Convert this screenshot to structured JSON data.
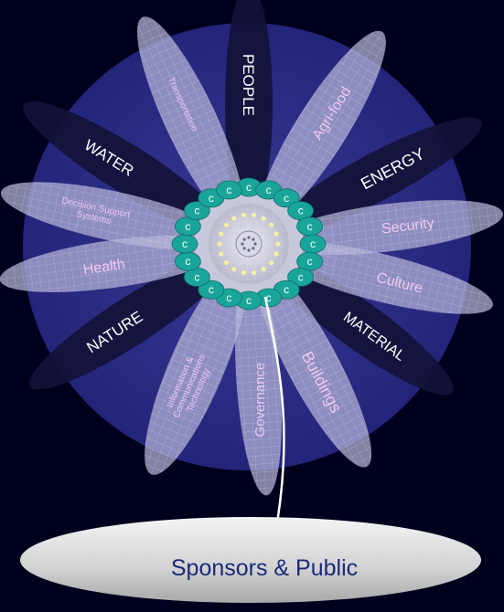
{
  "petals": [
    {
      "id": "people",
      "label": "PEOPLE",
      "tone": "dark"
    },
    {
      "id": "agri-food",
      "label": "Agri-food",
      "tone": "light"
    },
    {
      "id": "energy",
      "label": "ENERGY",
      "tone": "dark"
    },
    {
      "id": "security",
      "label": "Security",
      "tone": "light"
    },
    {
      "id": "culture",
      "label": "Culture",
      "tone": "light"
    },
    {
      "id": "material",
      "label": "MATERIAL",
      "tone": "dark"
    },
    {
      "id": "buildings",
      "label": "Buildings",
      "tone": "light"
    },
    {
      "id": "governance",
      "label": "Governance",
      "tone": "light"
    },
    {
      "id": "ict",
      "label": "Information & Communications Technology",
      "tone": "light"
    },
    {
      "id": "nature",
      "label": "NATURE",
      "tone": "dark"
    },
    {
      "id": "health",
      "label": "Health",
      "tone": "light"
    },
    {
      "id": "dss",
      "label": "Decision Support Systems",
      "tone": "light"
    },
    {
      "id": "water",
      "label": "WATER",
      "tone": "dark"
    },
    {
      "id": "transportation",
      "label": "Transportation",
      "tone": "light"
    }
  ],
  "ring_node_label": "c",
  "base": {
    "label": "Sponsors & Public"
  },
  "colors": {
    "background": "#00001e",
    "disc": "#2a2a82",
    "petal_light": "#b4b4d8",
    "petal_dark": "#121238",
    "node": "#1aa59a",
    "label_light": "#f0c8f0",
    "base_text": "#1a2a78"
  }
}
